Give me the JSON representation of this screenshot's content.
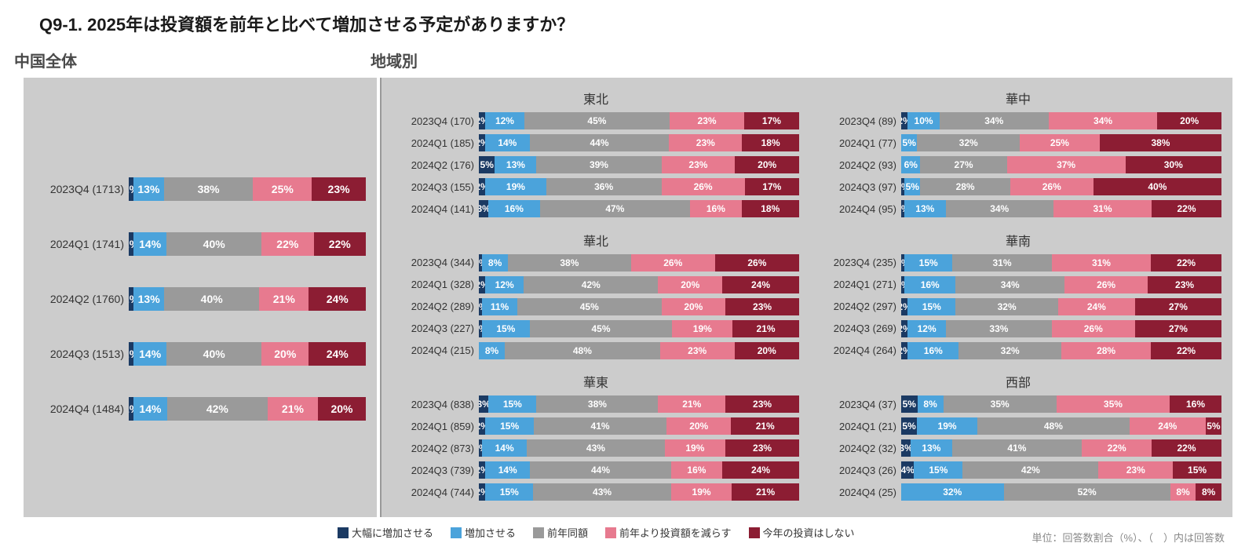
{
  "title": "Q9-1. 2025年は投資額を前年と比べて増加させる予定がありますか？",
  "section_left": "中国全体",
  "section_right": "地域別",
  "colors": {
    "increase_large": "#1b3a63",
    "increase": "#4ba3db",
    "same": "#9a9a9a",
    "decrease": "#e77a8f",
    "none": "#8c1d33",
    "bg": "#cccccc"
  },
  "segment_labels": [
    "大幅に増加させる",
    "増加させる",
    "前年同額",
    "前年より投資額を減らす",
    "今年の投資はしない"
  ],
  "footnote": "単位：回答数割合（%）、（　）内は回答数",
  "overall": [
    {
      "label": "2023Q4 (1713)",
      "v": [
        2,
        13,
        38,
        25,
        23
      ]
    },
    {
      "label": "2024Q1 (1741)",
      "v": [
        2,
        14,
        40,
        22,
        22
      ]
    },
    {
      "label": "2024Q2 (1760)",
      "v": [
        2,
        13,
        40,
        21,
        24
      ]
    },
    {
      "label": "2024Q3 (1513)",
      "v": [
        2,
        14,
        40,
        20,
        24
      ]
    },
    {
      "label": "2024Q4 (1484)",
      "v": [
        2,
        14,
        42,
        21,
        20
      ]
    }
  ],
  "regions": [
    {
      "name": "東北",
      "rows": [
        {
          "label": "2023Q4 (170)",
          "v": [
            2,
            12,
            45,
            23,
            17
          ]
        },
        {
          "label": "2024Q1 (185)",
          "v": [
            2,
            14,
            44,
            23,
            18
          ]
        },
        {
          "label": "2024Q2 (176)",
          "v": [
            5,
            13,
            39,
            23,
            20
          ]
        },
        {
          "label": "2024Q3 (155)",
          "v": [
            2,
            19,
            36,
            26,
            17
          ]
        },
        {
          "label": "2024Q4 (141)",
          "v": [
            3,
            16,
            47,
            16,
            18
          ]
        }
      ]
    },
    {
      "name": "華中",
      "rows": [
        {
          "label": "2023Q4 (89)",
          "v": [
            2,
            10,
            34,
            34,
            20
          ]
        },
        {
          "label": "2024Q1 (77)",
          "v": [
            0,
            5,
            32,
            25,
            38
          ]
        },
        {
          "label": "2024Q2 (93)",
          "v": [
            0,
            6,
            27,
            37,
            30
          ]
        },
        {
          "label": "2024Q3 (97)",
          "v": [
            1,
            5,
            28,
            26,
            40
          ]
        },
        {
          "label": "2024Q4 (95)",
          "v": [
            1,
            13,
            34,
            31,
            22
          ]
        }
      ]
    },
    {
      "name": "華北",
      "rows": [
        {
          "label": "2023Q4 (344)",
          "v": [
            1,
            8,
            38,
            26,
            26
          ]
        },
        {
          "label": "2024Q1 (328)",
          "v": [
            2,
            12,
            42,
            20,
            24
          ]
        },
        {
          "label": "2024Q2 (289)",
          "v": [
            1,
            11,
            45,
            20,
            23
          ]
        },
        {
          "label": "2024Q3 (227)",
          "v": [
            1,
            15,
            45,
            19,
            21
          ]
        },
        {
          "label": "2024Q4 (215)",
          "v": [
            0,
            8,
            48,
            23,
            20
          ]
        }
      ]
    },
    {
      "name": "華南",
      "rows": [
        {
          "label": "2023Q4 (235)",
          "v": [
            1,
            15,
            31,
            31,
            22
          ]
        },
        {
          "label": "2024Q1 (271)",
          "v": [
            1,
            16,
            34,
            26,
            23
          ]
        },
        {
          "label": "2024Q2 (297)",
          "v": [
            2,
            15,
            32,
            24,
            27
          ]
        },
        {
          "label": "2024Q3 (269)",
          "v": [
            2,
            12,
            33,
            26,
            27
          ]
        },
        {
          "label": "2024Q4 (264)",
          "v": [
            2,
            16,
            32,
            28,
            22
          ]
        }
      ]
    },
    {
      "name": "華東",
      "rows": [
        {
          "label": "2023Q4 (838)",
          "v": [
            3,
            15,
            38,
            21,
            23
          ]
        },
        {
          "label": "2024Q1 (859)",
          "v": [
            2,
            15,
            41,
            20,
            21
          ]
        },
        {
          "label": "2024Q2 (873)",
          "v": [
            1,
            14,
            43,
            19,
            23
          ]
        },
        {
          "label": "2024Q3 (739)",
          "v": [
            2,
            14,
            44,
            16,
            24
          ]
        },
        {
          "label": "2024Q4 (744)",
          "v": [
            2,
            15,
            43,
            19,
            21
          ]
        }
      ]
    },
    {
      "name": "西部",
      "rows": [
        {
          "label": "2023Q4 (37)",
          "v": [
            5,
            8,
            35,
            35,
            16
          ]
        },
        {
          "label": "2024Q1 (21)",
          "v": [
            5,
            19,
            48,
            24,
            5
          ]
        },
        {
          "label": "2024Q2 (32)",
          "v": [
            3,
            13,
            41,
            22,
            22
          ]
        },
        {
          "label": "2024Q3 (26)",
          "v": [
            4,
            15,
            42,
            23,
            15
          ]
        },
        {
          "label": "2024Q4 (25)",
          "v": [
            0,
            32,
            52,
            8,
            8
          ]
        }
      ]
    }
  ]
}
